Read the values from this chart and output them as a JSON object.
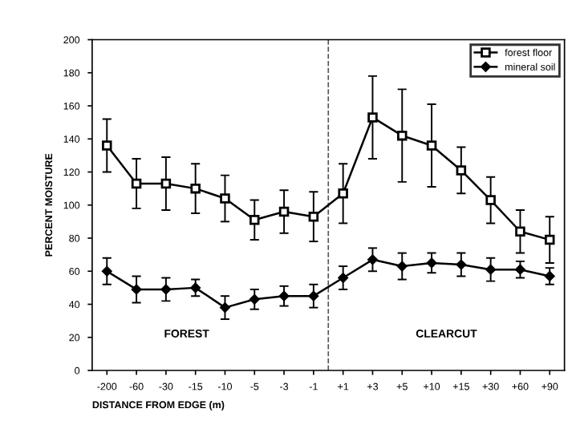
{
  "chart_data": {
    "type": "line",
    "xlabel": "DISTANCE FROM EDGE (m)",
    "ylabel": "PERCENT MOISTURE",
    "categories": [
      "-200",
      "-60",
      "-30",
      "-15",
      "-10",
      "-5",
      "-3",
      "-1",
      "+1",
      "+3",
      "+5",
      "+10",
      "+15",
      "+30",
      "+60",
      "+90"
    ],
    "series": [
      {
        "name": "forest floor",
        "color": "#000000",
        "marker": "square",
        "values": [
          136,
          113,
          113,
          110,
          104,
          91,
          96,
          93,
          107,
          153,
          142,
          136,
          121,
          103,
          84,
          79
        ],
        "errors": [
          16,
          15,
          16,
          15,
          14,
          12,
          13,
          15,
          18,
          25,
          28,
          25,
          14,
          14,
          13,
          14
        ]
      },
      {
        "name": "mineral soil",
        "color": "#000000",
        "marker": "diamond",
        "values": [
          60,
          49,
          49,
          50,
          38,
          43,
          45,
          45,
          56,
          67,
          63,
          65,
          64,
          61,
          61,
          57
        ],
        "errors": [
          8,
          8,
          7,
          5,
          7,
          6,
          6,
          7,
          7,
          7,
          8,
          6,
          7,
          7,
          5,
          5
        ]
      }
    ],
    "ylim": [
      0,
      200
    ],
    "yticks": [
      0,
      20,
      40,
      60,
      80,
      100,
      120,
      140,
      160,
      180,
      200
    ],
    "annotations": [
      "FOREST",
      "CLEARCUT"
    ],
    "legend": "top right",
    "grid": false,
    "line_style": "solid"
  }
}
